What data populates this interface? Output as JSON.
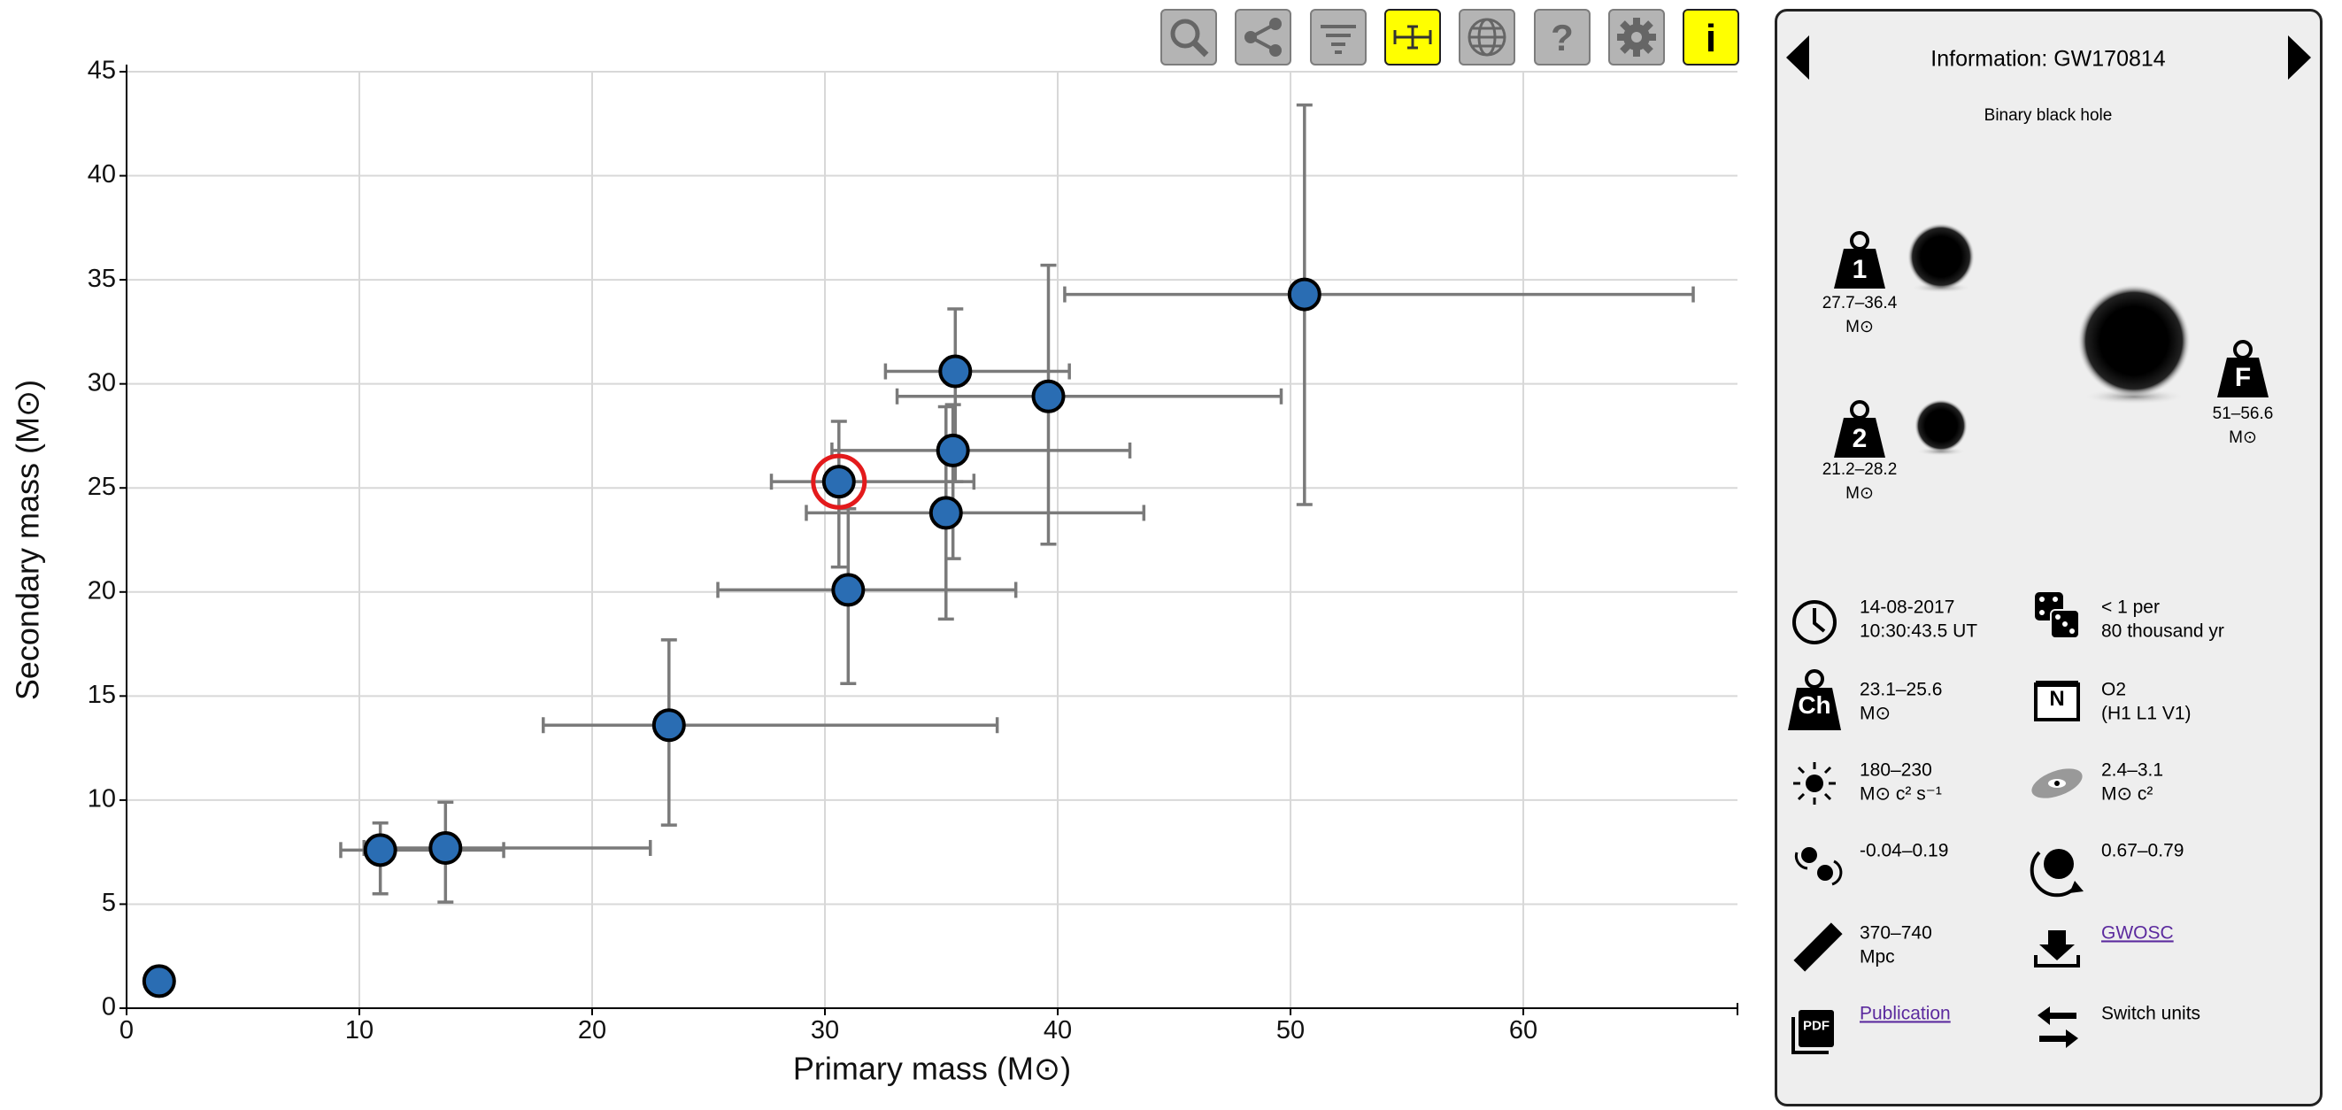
{
  "chart_data": {
    "type": "scatter",
    "xlabel": "Primary mass (M⊙)",
    "ylabel": "Secondary mass (M⊙)",
    "xlim": [
      0,
      69.2
    ],
    "ylim": [
      0,
      45
    ],
    "xticks": [
      0,
      10,
      20,
      30,
      40,
      50,
      60
    ],
    "yticks": [
      0,
      5,
      10,
      15,
      20,
      25,
      30,
      35,
      40,
      45
    ],
    "grid": true,
    "color": "#2a6db3",
    "error_color": "#7a7a7a",
    "highlight_color": "#e31a1c",
    "highlight_index": 5,
    "x": [
      1.4,
      10.9,
      13.7,
      23.3,
      31.0,
      30.6,
      35.2,
      35.5,
      35.6,
      39.6,
      50.6
    ],
    "values": [
      1.3,
      7.6,
      7.7,
      13.6,
      20.1,
      25.3,
      23.8,
      26.8,
      30.6,
      29.4,
      34.3
    ],
    "x_lower": [
      null,
      9.2,
      10.2,
      17.9,
      25.4,
      27.7,
      29.2,
      30.3,
      32.6,
      33.1,
      40.3
    ],
    "x_upper": [
      null,
      16.2,
      22.5,
      37.4,
      38.2,
      36.4,
      43.7,
      43.1,
      40.5,
      49.6,
      67.3
    ],
    "y_lower": [
      null,
      5.5,
      5.1,
      8.8,
      15.6,
      21.2,
      18.7,
      21.6,
      25.3,
      22.3,
      24.2
    ],
    "y_upper": [
      null,
      8.9,
      9.9,
      17.7,
      24.0,
      28.2,
      28.9,
      29.0,
      33.6,
      35.7,
      43.4
    ]
  },
  "toolbar": {
    "help": "?",
    "info": "i"
  },
  "info_panel": {
    "title": "Information: GW170814",
    "subtitle": "Binary black hole",
    "mass1": {
      "glyph": "1",
      "range": "27.7–36.4",
      "unit": "M⊙"
    },
    "mass2": {
      "glyph": "2",
      "range": "21.2–28.2",
      "unit": "M⊙"
    },
    "final_mass": {
      "glyph": "F",
      "range": "51–56.6",
      "unit": "M⊙"
    },
    "date": [
      "14-08-2017",
      "10:30:43.5 UT"
    ],
    "false_alarm_rate": [
      "< 1 per",
      "80 thousand yr"
    ],
    "chirp_mass": {
      "glyph": "Ch",
      "lines": [
        "23.1–25.6",
        "M⊙"
      ]
    },
    "run": {
      "glyph": "N",
      "lines": [
        "O2",
        "(H1 L1 V1)"
      ]
    },
    "peak_luminosity": [
      "180–230",
      "M⊙ c² s⁻¹"
    ],
    "radiated_energy": [
      "2.4–3.1",
      "M⊙ c²"
    ],
    "effective_spin": "-0.04–0.19",
    "final_spin": "0.67–0.79",
    "distance": [
      "370–740",
      "Mpc"
    ],
    "data_link": "GWOSC",
    "publication": {
      "glyph": "PDF",
      "text": "Publication"
    },
    "switch_units": "Switch units"
  }
}
